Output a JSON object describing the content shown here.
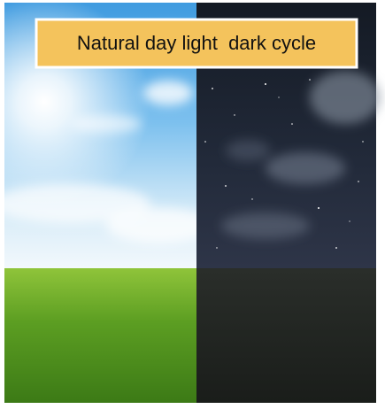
{
  "label": "Natural day light  dark cycle"
}
